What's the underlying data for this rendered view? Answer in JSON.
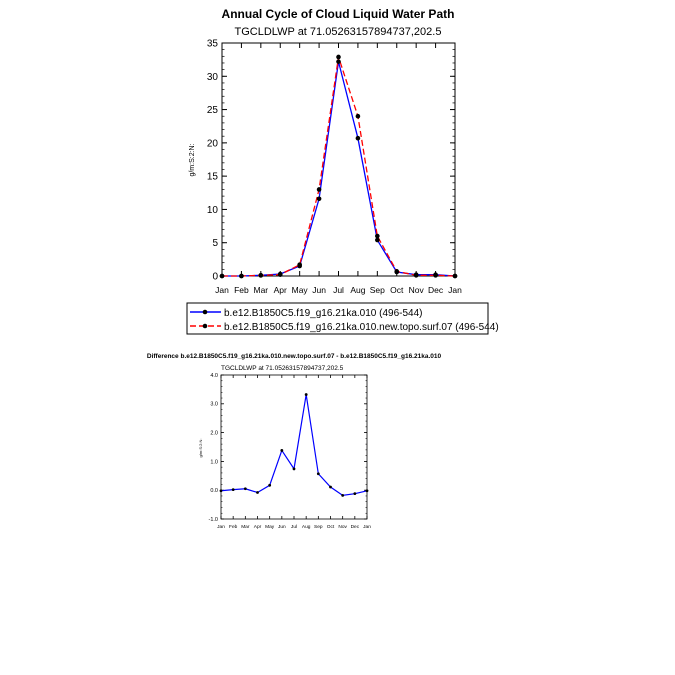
{
  "top": {
    "title": "Annual Cycle of Cloud Liquid Water Path",
    "subtitle": "TGCLDLWP at 71.05263157894737,202.5",
    "ylabel": "g/m:S:2:N:"
  },
  "bottom": {
    "title": "Difference b.e12.B1850C5.f19_g16.21ka.010.new.topo.surf.07 - b.e12.B1850C5.f19_g16.21ka.010",
    "subtitle": "TGCLDLWP at 71.05263157894737,202.5",
    "ylabel": "g/m:S:2:N:"
  },
  "legend": {
    "items": [
      "b.e12.B1850C5.f19_g16.21ka.010 (496-544)",
      "b.e12.B1850C5.f19_g16.21ka.010.new.topo.surf.07 (496-544)"
    ]
  },
  "colors": {
    "series1": "#0000ff",
    "series2": "#ff0000",
    "marker": "#000000"
  },
  "chart_data": [
    {
      "type": "line",
      "title": "Annual Cycle of Cloud Liquid Water Path",
      "subtitle": "TGCLDLWP at 71.05263157894737,202.5",
      "ylabel": "g/m:S:2:N:",
      "categories": [
        "Jan",
        "Feb",
        "Mar",
        "Apr",
        "May",
        "Jun",
        "Jul",
        "Aug",
        "Sep",
        "Oct",
        "Nov",
        "Dec",
        "Jan"
      ],
      "ylim": [
        0,
        35
      ],
      "yticks": [
        0,
        5,
        10,
        15,
        20,
        25,
        30,
        35
      ],
      "series": [
        {
          "name": "b.e12.B1850C5.f19_g16.21ka.010 (496-544)",
          "values": [
            0.0,
            0.0,
            0.1,
            0.3,
            1.5,
            11.6,
            32.2,
            20.7,
            5.4,
            0.6,
            0.2,
            0.2,
            0.0
          ]
        },
        {
          "name": "b.e12.B1850C5.f19_g16.21ka.010.new.topo.surf.07 (496-544)",
          "values": [
            0.0,
            0.0,
            0.1,
            0.2,
            1.7,
            13.0,
            32.9,
            24.0,
            6.0,
            0.7,
            0.1,
            0.1,
            0.0
          ]
        }
      ]
    },
    {
      "type": "line",
      "title": "Difference b.e12.B1850C5.f19_g16.21ka.010.new.topo.surf.07 - b.e12.B1850C5.f19_g16.21ka.010",
      "subtitle": "TGCLDLWP at 71.05263157894737,202.5",
      "ylabel": "g/m:S:2:N:",
      "categories": [
        "Jan",
        "Feb",
        "Mar",
        "Apr",
        "May",
        "Jun",
        "Jul",
        "Aug",
        "Sep",
        "Oct",
        "Nov",
        "Dec",
        "Jan"
      ],
      "ylim": [
        -1.0,
        4.0
      ],
      "yticks": [
        -1.0,
        0.0,
        1.0,
        2.0,
        3.0,
        4.0
      ],
      "series": [
        {
          "values": [
            -0.02,
            0.02,
            0.05,
            -0.08,
            0.17,
            1.38,
            0.74,
            3.32,
            0.57,
            0.11,
            -0.18,
            -0.12,
            -0.02
          ]
        }
      ]
    }
  ]
}
